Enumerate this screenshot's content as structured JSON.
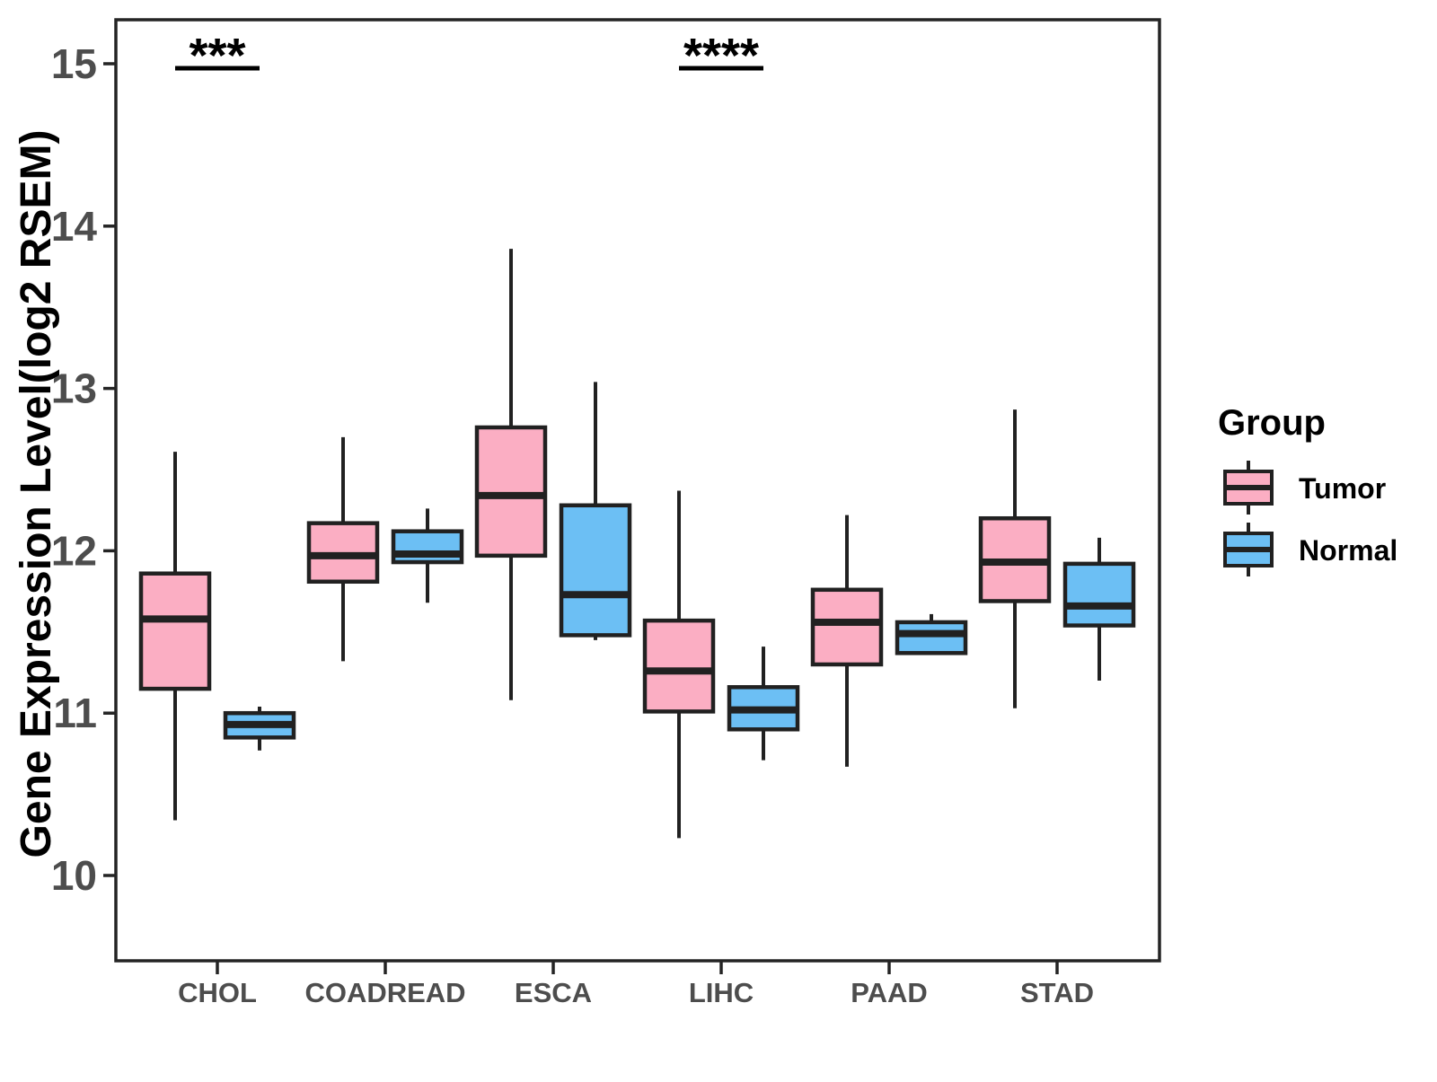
{
  "chart_data": {
    "type": "grouped_boxplot",
    "title": "",
    "xlabel": "",
    "ylabel": "Gene Expression Level(log2 RSEM)",
    "ylim": [
      9.48,
      15.27
    ],
    "yticks": [
      10,
      11,
      12,
      13,
      14,
      15
    ],
    "grid": "off",
    "categories": [
      "CHOL",
      "COADREAD",
      "ESCA",
      "LIHC",
      "PAAD",
      "STAD"
    ],
    "legend": {
      "title": "Group",
      "position": "right",
      "entries": [
        {
          "label": "Tumor",
          "color": "#FBAEC3"
        },
        {
          "label": "Normal",
          "color": "#6CBFF4"
        }
      ]
    },
    "series": [
      {
        "name": "Tumor",
        "color": "#FBAEC3",
        "boxes": [
          {
            "category": "CHOL",
            "whisker_low": 10.34,
            "q1": 11.15,
            "median": 11.58,
            "q3": 11.86,
            "whisker_high": 12.61
          },
          {
            "category": "COADREAD",
            "whisker_low": 11.32,
            "q1": 11.81,
            "median": 11.97,
            "q3": 12.17,
            "whisker_high": 12.7
          },
          {
            "category": "ESCA",
            "whisker_low": 11.08,
            "q1": 11.97,
            "median": 12.34,
            "q3": 12.76,
            "whisker_high": 13.86
          },
          {
            "category": "LIHC",
            "whisker_low": 10.23,
            "q1": 11.01,
            "median": 11.26,
            "q3": 11.57,
            "whisker_high": 12.37
          },
          {
            "category": "PAAD",
            "whisker_low": 10.67,
            "q1": 11.3,
            "median": 11.56,
            "q3": 11.76,
            "whisker_high": 12.22
          },
          {
            "category": "STAD",
            "whisker_low": 11.03,
            "q1": 11.69,
            "median": 11.93,
            "q3": 12.2,
            "whisker_high": 12.87
          }
        ]
      },
      {
        "name": "Normal",
        "color": "#6CBFF4",
        "boxes": [
          {
            "category": "CHOL",
            "whisker_low": 10.77,
            "q1": 10.85,
            "median": 10.93,
            "q3": 11.0,
            "whisker_high": 11.04
          },
          {
            "category": "COADREAD",
            "whisker_low": 11.68,
            "q1": 11.93,
            "median": 11.98,
            "q3": 12.12,
            "whisker_high": 12.26
          },
          {
            "category": "ESCA",
            "whisker_low": 11.45,
            "q1": 11.48,
            "median": 11.73,
            "q3": 12.28,
            "whisker_high": 13.04
          },
          {
            "category": "LIHC",
            "whisker_low": 10.71,
            "q1": 10.9,
            "median": 11.02,
            "q3": 11.16,
            "whisker_high": 11.41
          },
          {
            "category": "PAAD",
            "whisker_low": 11.37,
            "q1": 11.37,
            "median": 11.49,
            "q3": 11.56,
            "whisker_high": 11.61
          },
          {
            "category": "STAD",
            "whisker_low": 11.2,
            "q1": 11.54,
            "median": 11.66,
            "q3": 11.92,
            "whisker_high": 12.08
          }
        ]
      }
    ],
    "annotations": [
      {
        "category": "CHOL",
        "label": "***",
        "y": 14.97
      },
      {
        "category": "LIHC",
        "label": "****",
        "y": 14.97
      }
    ],
    "colors": {
      "box_border": "#212121",
      "median": "#212121",
      "whisker": "#212121",
      "panel_border": "#242424",
      "axis_tick_text": "#4D4D4D",
      "axis_title_text": "#000000",
      "legend_text": "#000000",
      "annotation": "#000000",
      "background": "#FFFFFF"
    }
  }
}
